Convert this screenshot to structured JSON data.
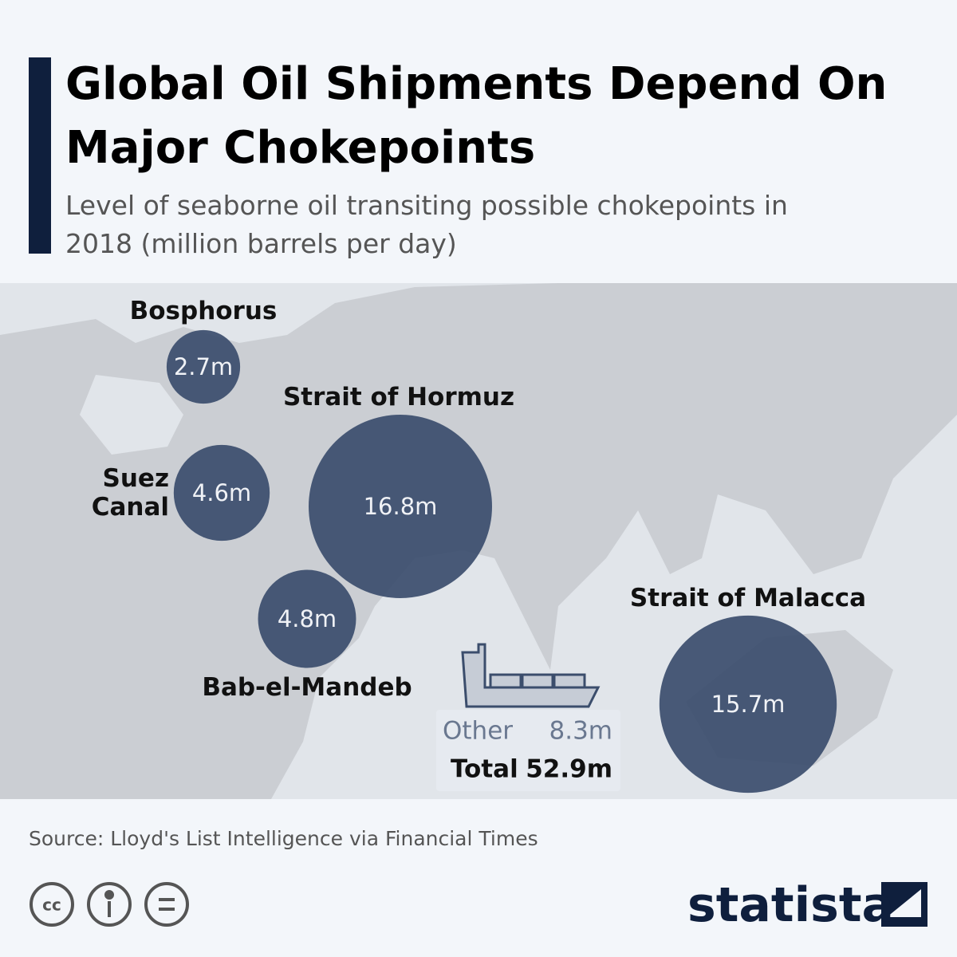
{
  "chart_data": {
    "type": "bubble-map",
    "title": "Global Oil Shipments Depend On Major Chokepoints",
    "subtitle": "Level of seaborne oil transiting possible chokepoints in 2018 (million barrels per day)",
    "categories": [
      "Bosphorus",
      "Suez Canal",
      "Strait of Hormuz",
      "Bab-el-Mandeb",
      "Strait of Malacca"
    ],
    "values": [
      2.7,
      4.6,
      16.8,
      4.8,
      15.7
    ],
    "value_labels": [
      "2.7m",
      "4.6m",
      "16.8m",
      "4.8m",
      "15.7m"
    ],
    "color": "#3b4d6c",
    "summary": {
      "labels": [
        "Other",
        "Total"
      ],
      "values": [
        8.3,
        52.9
      ],
      "value_labels": [
        "8.3m",
        "52.9m"
      ]
    },
    "source": "Source: Lloyd's List Intelligence via Financial Times",
    "brand": "statista"
  }
}
